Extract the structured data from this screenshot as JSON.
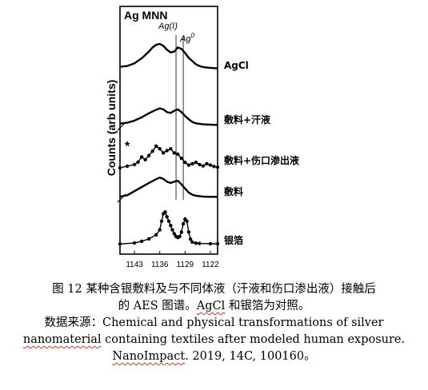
{
  "chart_data": {
    "type": "line",
    "title": "Ag MNN",
    "xlabel": "",
    "ylabel": "Counts (arb units)",
    "xlim": [
      1147,
      1120
    ],
    "x_ticks": [
      1143,
      1136,
      1129,
      1122
    ],
    "x_tick_labels": [
      "1143",
      "1136",
      "1129",
      "1122"
    ],
    "grid": false,
    "legend": "labels-at-right",
    "peak_markers": [
      {
        "label": "Ag(I)",
        "x": 1131.5
      },
      {
        "label": "Ag",
        "superscript": "0",
        "x": 1129.5
      }
    ],
    "annotation": "*",
    "series": [
      {
        "name": "AgCl",
        "style": "line",
        "x": [
          1147,
          1145,
          1143,
          1141,
          1139,
          1138,
          1137,
          1136,
          1135,
          1134,
          1133,
          1132,
          1131,
          1130,
          1129,
          1128,
          1127,
          1126,
          1125,
          1124,
          1122,
          1120
        ],
        "y": [
          1.3,
          1.6,
          2.6,
          4.4,
          6.9,
          8.4,
          9.4,
          9.7,
          9.0,
          7.6,
          6.6,
          6.9,
          8.4,
          7.9,
          6.4,
          4.6,
          3.4,
          2.2,
          1.6,
          1.2,
          0.9,
          0.7
        ]
      },
      {
        "name": "敷料+汗液",
        "style": "line",
        "x": [
          1147,
          1145,
          1143,
          1141,
          1139,
          1137,
          1136,
          1135,
          1134,
          1133,
          1132,
          1131,
          1130,
          1129,
          1128,
          1127,
          1126,
          1124,
          1122,
          1120
        ],
        "y": [
          1.0,
          1.3,
          2.1,
          3.3,
          4.8,
          6.1,
          6.6,
          6.2,
          5.2,
          4.9,
          5.7,
          6.2,
          5.2,
          3.8,
          2.6,
          1.6,
          1.1,
          0.7,
          0.6,
          0.5
        ]
      },
      {
        "name": "敷料+伤口渗出液",
        "style": "markers",
        "x": [
          1147,
          1145,
          1143,
          1142,
          1141,
          1140,
          1139,
          1138,
          1137,
          1136,
          1135,
          1134,
          1133,
          1132,
          1131,
          1130,
          1129,
          1128,
          1127,
          1126,
          1125,
          1124,
          1123,
          1122,
          1121,
          1120
        ],
        "y": [
          0.6,
          1.2,
          1.8,
          2.7,
          4.6,
          3.6,
          5.1,
          6.7,
          8.6,
          7.6,
          6.1,
          6.9,
          7.6,
          6.1,
          5.6,
          4.1,
          2.6,
          1.6,
          2.1,
          2.6,
          1.8,
          1.3,
          2.1,
          1.6,
          1.1,
          0.8
        ]
      },
      {
        "name": "敷料",
        "style": "line",
        "x": [
          1147,
          1145,
          1143,
          1141,
          1139,
          1137,
          1136,
          1135,
          1134,
          1133,
          1132,
          1131,
          1130,
          1129,
          1128,
          1127,
          1126,
          1124,
          1122,
          1120
        ],
        "y": [
          0.6,
          1.1,
          2.6,
          4.1,
          5.6,
          7.0,
          7.6,
          7.1,
          6.1,
          5.6,
          6.1,
          6.4,
          5.1,
          3.6,
          2.1,
          1.3,
          0.9,
          0.6,
          0.5,
          0.5
        ]
      },
      {
        "name": "银箔",
        "style": "markers",
        "x": [
          1147,
          1143,
          1141,
          1139,
          1137,
          1136,
          1135.5,
          1135,
          1134.5,
          1134,
          1133.5,
          1133,
          1132.5,
          1132,
          1131.5,
          1131,
          1130.5,
          1130,
          1129.5,
          1129,
          1128.5,
          1128,
          1127.5,
          1127,
          1126,
          1125,
          1122,
          1120
        ],
        "y": [
          0.2,
          0.6,
          1.2,
          2.1,
          3.6,
          5.4,
          8.6,
          11.3,
          12.0,
          10.2,
          8.6,
          7.0,
          5.4,
          4.0,
          3.0,
          2.6,
          3.0,
          4.6,
          7.6,
          9.4,
          8.6,
          4.6,
          2.0,
          0.9,
          0.5,
          0.4,
          0.3,
          0.3
        ]
      }
    ]
  },
  "caption": {
    "line1": "图 12 某种含银敷料及与不同体液（汗液和伤口渗出液）接触后",
    "line2_a": "的 AES 图谱。",
    "line2_b": "AgCl",
    "line2_c": " 和银箔为对照。",
    "line3_a": "数据来源：Chemical and physical transformations of silver",
    "line4_a": "nanomaterial",
    "line4_b": " containing textiles after modeled human exposure.",
    "line5_a": "NanoImpact",
    "line5_b": ". 2019, 14C, 100160。"
  }
}
